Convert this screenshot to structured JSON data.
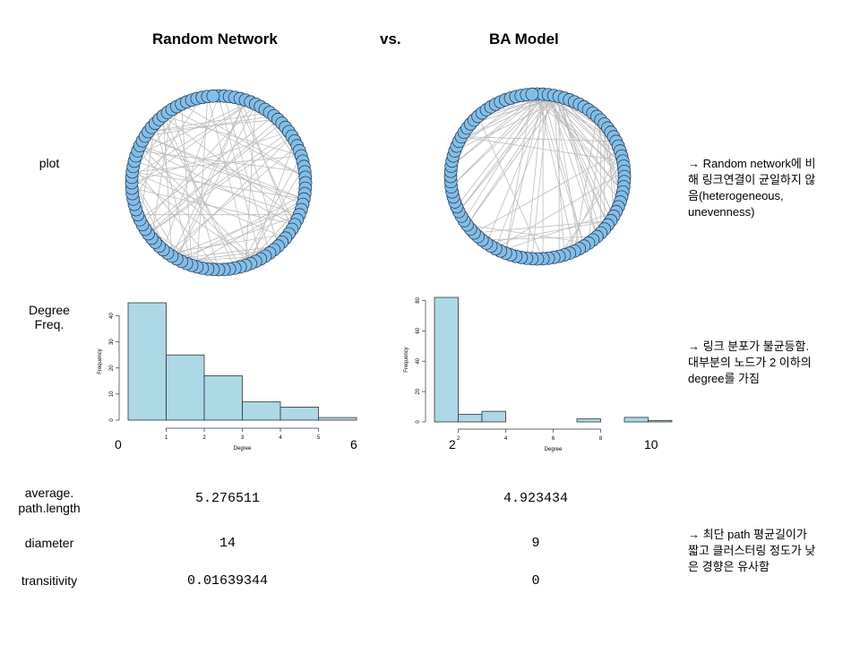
{
  "header": {
    "left": "Random Network",
    "vs": "vs.",
    "right": "BA Model"
  },
  "rows": {
    "plot": "plot",
    "degree_line1": "Degree",
    "degree_line2": "Freq.",
    "apl_line1": "average.",
    "apl_line2": "path.length",
    "diameter": "diameter",
    "transitivity": "transitivity"
  },
  "notes": {
    "note1": [
      "→ Random network에 비",
      "해 링크연결이 균일하지 않",
      "음(heterogeneous,",
      "unevenness)"
    ],
    "note2": [
      "→ 링크 분포가 불균등함.",
      "대부분의 노드가 2 이하의",
      "degree를 가짐"
    ],
    "note3": [
      "→ 최단 path 평균길이가",
      "짧고 클러스터링 정도가 낮",
      "은 경향은 유사함"
    ]
  },
  "random": {
    "apl": "5.276511",
    "diameter": "14",
    "transitivity": "0.01639344",
    "tick_left": "0",
    "tick_right": "6"
  },
  "ba": {
    "apl": "4.923434",
    "diameter": "9",
    "transitivity": "0",
    "tick_left": "2",
    "tick_right": "10"
  },
  "colors": {
    "node": "#82bfe8",
    "node_stroke": "#2b3e5c",
    "edge": "#bdbdbd",
    "bar": "#add8e6"
  },
  "chart_data": [
    {
      "type": "bar",
      "ylabel": "Frequency",
      "xlabel": "Degree",
      "bins": [
        [
          0,
          1
        ],
        [
          1,
          2
        ],
        [
          2,
          3
        ],
        [
          3,
          4
        ],
        [
          4,
          5
        ],
        [
          5,
          6
        ]
      ],
      "values": [
        45,
        25,
        17,
        7,
        5,
        1
      ],
      "xticks": [
        1,
        2,
        3,
        4,
        5
      ],
      "yticks": [
        0,
        10,
        20,
        30,
        40
      ],
      "xlim": [
        0,
        6
      ],
      "ylim": [
        0,
        45
      ]
    },
    {
      "type": "bar",
      "ylabel": "Frequency",
      "xlabel": "Degree",
      "bins": [
        [
          1,
          2
        ],
        [
          2,
          3
        ],
        [
          3,
          4
        ],
        [
          4,
          5
        ],
        [
          5,
          6
        ],
        [
          6,
          7
        ],
        [
          7,
          8
        ],
        [
          8,
          9
        ],
        [
          9,
          10
        ],
        [
          10,
          11
        ]
      ],
      "values": [
        82,
        5,
        7,
        0,
        0,
        0,
        2,
        0,
        3,
        1
      ],
      "xticks": [
        2,
        4,
        6,
        8
      ],
      "yticks": [
        0,
        20,
        40,
        60,
        80
      ],
      "xlim": [
        1,
        11
      ],
      "ylim": [
        0,
        82
      ]
    }
  ]
}
